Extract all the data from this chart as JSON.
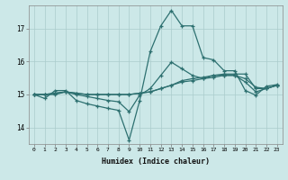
{
  "xlabel": "Humidex (Indice chaleur)",
  "bg_color": "#cce8e8",
  "grid_color": "#aacccc",
  "line_color": "#2d7070",
  "xlim": [
    -0.5,
    23.5
  ],
  "ylim": [
    13.5,
    17.7
  ],
  "yticks": [
    14,
    15,
    16,
    17
  ],
  "xticks": [
    0,
    1,
    2,
    3,
    4,
    5,
    6,
    7,
    8,
    9,
    10,
    11,
    12,
    13,
    14,
    15,
    16,
    17,
    18,
    19,
    20,
    21,
    22,
    23
  ],
  "series": [
    [
      15.0,
      14.88,
      15.12,
      15.12,
      14.82,
      14.72,
      14.65,
      14.58,
      14.52,
      13.62,
      14.82,
      16.3,
      17.08,
      17.55,
      17.08,
      17.08,
      16.12,
      16.05,
      15.72,
      15.72,
      15.12,
      14.98,
      15.25,
      15.3
    ],
    [
      15.0,
      15.0,
      15.0,
      15.08,
      15.04,
      15.0,
      15.0,
      15.0,
      15.0,
      15.0,
      15.04,
      15.08,
      15.18,
      15.28,
      15.42,
      15.48,
      15.52,
      15.58,
      15.62,
      15.62,
      15.62,
      15.18,
      15.18,
      15.28
    ],
    [
      15.0,
      15.0,
      15.04,
      15.08,
      15.04,
      15.0,
      15.0,
      15.0,
      15.0,
      15.0,
      15.04,
      15.08,
      15.18,
      15.28,
      15.38,
      15.42,
      15.48,
      15.52,
      15.58,
      15.58,
      15.48,
      15.22,
      15.18,
      15.28
    ],
    [
      15.0,
      15.0,
      15.04,
      15.08,
      15.0,
      14.94,
      14.88,
      14.82,
      14.78,
      14.48,
      14.98,
      15.18,
      15.58,
      15.98,
      15.78,
      15.58,
      15.48,
      15.58,
      15.58,
      15.58,
      15.38,
      15.08,
      15.18,
      15.28
    ]
  ]
}
